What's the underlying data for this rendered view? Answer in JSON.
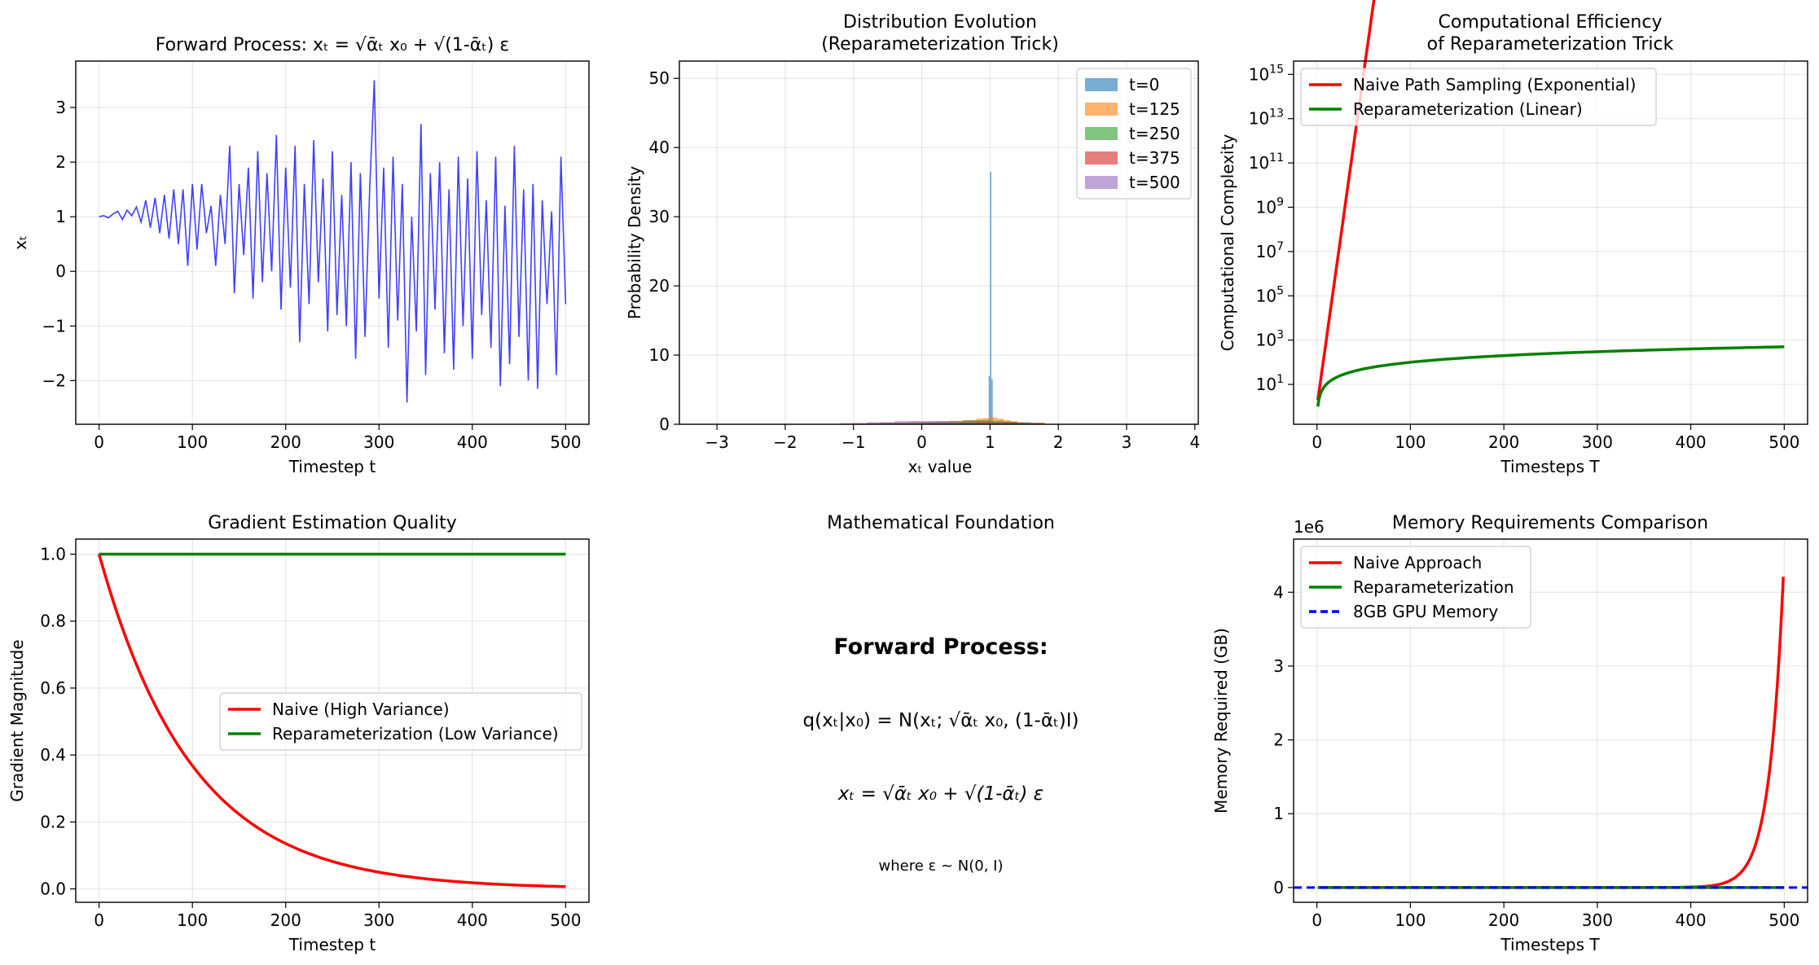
{
  "colors": {
    "blue": "#0000ff",
    "red": "#ff0000",
    "green": "#008000",
    "hist": [
      "#1f77b4",
      "#ff7f0e",
      "#2ca02c",
      "#d62728",
      "#9467bd"
    ]
  },
  "chart_data": [
    {
      "id": "forward",
      "type": "line",
      "title": "Forward Process: xₜ = √ᾱₜ x₀ + √(1-ᾱₜ) ε",
      "xlabel": "Timestep t",
      "ylabel": "xₜ",
      "xlim": [
        -25,
        525
      ],
      "ylim": [
        -2.8,
        3.85
      ],
      "xticks": [
        0,
        100,
        200,
        300,
        400,
        500
      ],
      "yticks": [
        -2,
        -1,
        0,
        1,
        2,
        3
      ],
      "grid": true,
      "series": [
        {
          "color": "#0000ff",
          "points": [
            [
              0,
              1.0
            ],
            [
              5,
              1.02
            ],
            [
              10,
              0.98
            ],
            [
              15,
              1.05
            ],
            [
              20,
              1.1
            ],
            [
              25,
              0.95
            ],
            [
              30,
              1.12
            ],
            [
              35,
              1.02
            ],
            [
              40,
              1.18
            ],
            [
              45,
              0.9
            ],
            [
              50,
              1.3
            ],
            [
              55,
              0.8
            ],
            [
              60,
              1.35
            ],
            [
              65,
              0.7
            ],
            [
              70,
              1.4
            ],
            [
              75,
              0.6
            ],
            [
              80,
              1.5
            ],
            [
              85,
              0.5
            ],
            [
              90,
              1.5
            ],
            [
              95,
              0.1
            ],
            [
              100,
              1.6
            ],
            [
              105,
              0.4
            ],
            [
              110,
              1.6
            ],
            [
              115,
              0.7
            ],
            [
              120,
              1.2
            ],
            [
              125,
              0.1
            ],
            [
              130,
              1.4
            ],
            [
              135,
              0.5
            ],
            [
              140,
              2.3
            ],
            [
              145,
              -0.4
            ],
            [
              150,
              1.6
            ],
            [
              155,
              0.3
            ],
            [
              160,
              1.9
            ],
            [
              165,
              -0.5
            ],
            [
              170,
              2.2
            ],
            [
              175,
              -0.2
            ],
            [
              180,
              1.8
            ],
            [
              185,
              0.0
            ],
            [
              190,
              2.5
            ],
            [
              195,
              -0.7
            ],
            [
              200,
              1.9
            ],
            [
              205,
              -0.3
            ],
            [
              210,
              2.3
            ],
            [
              215,
              -1.3
            ],
            [
              220,
              1.6
            ],
            [
              225,
              -0.6
            ],
            [
              230,
              2.4
            ],
            [
              235,
              -0.2
            ],
            [
              240,
              1.7
            ],
            [
              245,
              -1.1
            ],
            [
              250,
              2.2
            ],
            [
              255,
              -0.8
            ],
            [
              260,
              1.4
            ],
            [
              265,
              -1.0
            ],
            [
              270,
              2.0
            ],
            [
              275,
              -1.6
            ],
            [
              280,
              1.8
            ],
            [
              285,
              -1.2
            ],
            [
              290,
              1.5
            ],
            [
              295,
              3.5
            ],
            [
              300,
              -0.5
            ],
            [
              305,
              1.9
            ],
            [
              310,
              -1.4
            ],
            [
              315,
              2.1
            ],
            [
              320,
              -0.9
            ],
            [
              325,
              1.6
            ],
            [
              330,
              -2.4
            ],
            [
              335,
              1.0
            ],
            [
              340,
              -1.1
            ],
            [
              345,
              2.7
            ],
            [
              350,
              -1.9
            ],
            [
              355,
              1.8
            ],
            [
              360,
              -0.7
            ],
            [
              365,
              2.0
            ],
            [
              370,
              -1.5
            ],
            [
              375,
              1.5
            ],
            [
              380,
              -1.8
            ],
            [
              385,
              2.1
            ],
            [
              390,
              -1.0
            ],
            [
              395,
              1.7
            ],
            [
              400,
              -1.6
            ],
            [
              405,
              2.2
            ],
            [
              410,
              -0.8
            ],
            [
              415,
              1.3
            ],
            [
              420,
              -1.4
            ],
            [
              425,
              2.1
            ],
            [
              430,
              -2.1
            ],
            [
              435,
              1.2
            ],
            [
              440,
              -1.7
            ],
            [
              445,
              2.3
            ],
            [
              450,
              -1.2
            ],
            [
              455,
              1.5
            ],
            [
              460,
              -2.0
            ],
            [
              465,
              1.6
            ],
            [
              470,
              -2.15
            ],
            [
              475,
              1.3
            ],
            [
              480,
              -0.6
            ],
            [
              485,
              1.1
            ],
            [
              490,
              -1.9
            ],
            [
              495,
              2.1
            ],
            [
              500,
              -0.6
            ]
          ]
        }
      ]
    },
    {
      "id": "hist",
      "type": "bar",
      "title": "Distribution Evolution\n(Reparameterization Trick)",
      "xlabel": "xₜ value",
      "ylabel": "Probability Density",
      "xlim": [
        -3.55,
        4.05
      ],
      "ylim": [
        0,
        52.5
      ],
      "xticks": [
        -3,
        -2,
        -1,
        0,
        1,
        2,
        3,
        4
      ],
      "yticks": [
        0,
        10,
        20,
        30,
        40,
        50
      ],
      "grid": true,
      "legend_position": "top-right",
      "series": [
        {
          "name": "t=0",
          "bins": [
            [
              0.98,
              1.0,
              7.0
            ],
            [
              1.0,
              1.02,
              36.5
            ],
            [
              1.02,
              1.04,
              6.5
            ]
          ]
        },
        {
          "name": "t=125",
          "bins": [
            [
              0.6,
              0.7,
              0.5
            ],
            [
              0.7,
              0.8,
              0.6
            ],
            [
              0.8,
              0.9,
              0.8
            ],
            [
              0.9,
              1.0,
              0.9
            ],
            [
              1.0,
              1.1,
              1.0
            ],
            [
              1.1,
              1.2,
              0.8
            ],
            [
              1.2,
              1.3,
              0.6
            ],
            [
              1.3,
              1.4,
              0.4
            ],
            [
              1.4,
              1.5,
              0.3
            ]
          ]
        },
        {
          "name": "t=250",
          "bins": [
            [
              0.0,
              0.2,
              0.3
            ],
            [
              0.2,
              0.4,
              0.4
            ],
            [
              0.4,
              0.6,
              0.5
            ],
            [
              0.6,
              0.8,
              0.6
            ],
            [
              0.8,
              1.0,
              0.6
            ],
            [
              1.0,
              1.2,
              0.5
            ],
            [
              1.2,
              1.4,
              0.4
            ],
            [
              1.4,
              1.6,
              0.3
            ],
            [
              1.6,
              1.8,
              0.2
            ]
          ]
        },
        {
          "name": "t=375",
          "bins": [
            [
              -1.0,
              -0.6,
              0.15
            ],
            [
              -0.6,
              -0.2,
              0.25
            ],
            [
              -0.2,
              0.2,
              0.35
            ],
            [
              0.2,
              0.6,
              0.4
            ],
            [
              0.6,
              1.0,
              0.4
            ],
            [
              1.0,
              1.4,
              0.3
            ],
            [
              1.4,
              1.8,
              0.2
            ]
          ]
        },
        {
          "name": "t=500",
          "bins": [
            [
              -1.2,
              -0.8,
              0.15
            ],
            [
              -0.8,
              -0.4,
              0.3
            ],
            [
              -0.4,
              0.0,
              0.45
            ],
            [
              0.0,
              0.4,
              0.45
            ],
            [
              0.4,
              0.8,
              0.3
            ],
            [
              0.8,
              1.2,
              0.2
            ],
            [
              1.2,
              1.6,
              0.1
            ]
          ]
        }
      ]
    },
    {
      "id": "complexity",
      "type": "line",
      "title": "Computational Efficiency\nof Reparameterization Trick",
      "xlabel": "Timesteps T",
      "ylabel": "Computational Complexity",
      "scale": "log",
      "xlim": [
        -25,
        525
      ],
      "ylog_range": [
        -0.8,
        15.6
      ],
      "xticks": [
        0,
        100,
        200,
        300,
        400,
        500
      ],
      "ytick_exponents": [
        1,
        3,
        5,
        7,
        9,
        11,
        13,
        15
      ],
      "grid": true,
      "legend_position": "top-left",
      "series": [
        {
          "name": "Naive Path Sampling (Exponential)",
          "formula": "2^T",
          "color": "#ff0000"
        },
        {
          "name": "Reparameterization (Linear)",
          "formula": "T",
          "color": "#008000"
        }
      ]
    },
    {
      "id": "gradient",
      "type": "line",
      "title": "Gradient Estimation Quality",
      "xlabel": "Timestep t",
      "ylabel": "Gradient Magnitude",
      "xlim": [
        -25,
        525
      ],
      "ylim": [
        -0.04,
        1.045
      ],
      "xticks": [
        0,
        100,
        200,
        300,
        400,
        500
      ],
      "yticks": [
        0.0,
        0.2,
        0.4,
        0.6,
        0.8,
        1.0
      ],
      "grid": true,
      "legend_position": "center-right",
      "series": [
        {
          "name": "Naive (High Variance)",
          "formula": "exp(-t/100)",
          "color": "#ff0000"
        },
        {
          "name": "Reparameterization (Low Variance)",
          "formula": "1",
          "color": "#008000"
        }
      ]
    },
    {
      "id": "memory",
      "type": "line",
      "title": "Memory Requirements Comparison",
      "xlabel": "Timesteps T",
      "ylabel": "Memory Required (GB)",
      "offset_label": "1e6",
      "xlim": [
        -25,
        525
      ],
      "ylim": [
        -0.2,
        4.72
      ],
      "xticks": [
        0,
        100,
        200,
        300,
        400,
        500
      ],
      "yticks": [
        0,
        1,
        2,
        3,
        4
      ],
      "grid": true,
      "legend_position": "top-left",
      "series": [
        {
          "name": "Naive Approach",
          "formula": "4.5 * exp((T-500)/15)",
          "color": "#ff0000"
        },
        {
          "name": "Reparameterization",
          "formula": "0",
          "color": "#008000"
        },
        {
          "name": "8GB GPU Memory",
          "value": 8,
          "style": "dashed",
          "color": "#0000ff"
        }
      ]
    }
  ],
  "math_panel": {
    "title": "Mathematical Foundation",
    "heading": "Forward Process:",
    "formula1": "q(xₜ|x₀) = N(xₜ; √ᾱₜ x₀, (1-ᾱₜ)I)",
    "formula2": "xₜ = √ᾱₜ x₀ + √(1-ᾱₜ) ε",
    "note": "where ε ~ N(0, I)"
  }
}
